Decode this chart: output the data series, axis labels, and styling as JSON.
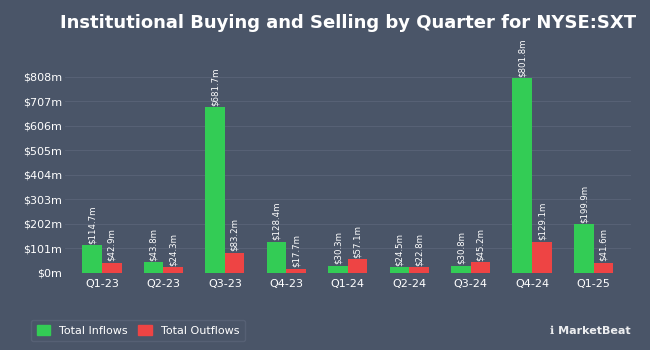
{
  "title": "Institutional Buying and Selling by Quarter for NYSE:SXT",
  "quarters": [
    "Q1-23",
    "Q2-23",
    "Q3-23",
    "Q4-23",
    "Q1-24",
    "Q2-24",
    "Q3-24",
    "Q4-24",
    "Q1-25"
  ],
  "inflows": [
    114.7,
    43.8,
    681.7,
    128.4,
    30.3,
    24.5,
    30.8,
    801.8,
    199.9
  ],
  "outflows": [
    42.9,
    24.3,
    83.2,
    17.7,
    57.1,
    22.8,
    45.2,
    129.1,
    41.6
  ],
  "inflow_labels": [
    "$114.7m",
    "$43.8m",
    "$681.7m",
    "$128.4m",
    "$30.3m",
    "$24.5m",
    "$30.8m",
    "$801.8m",
    "$199.9m"
  ],
  "outflow_labels": [
    "$42.9m",
    "$24.3m",
    "$83.2m",
    "$17.7m",
    "$57.1m",
    "$22.8m",
    "$45.2m",
    "$129.1m",
    "$41.6m"
  ],
  "inflow_color": "#33cc55",
  "outflow_color": "#ee4444",
  "background_color": "#4a5568",
  "grid_color": "#5a6478",
  "text_color": "#ffffff",
  "bar_width": 0.32,
  "ylim": [
    0,
    950
  ],
  "yticks": [
    0,
    101,
    202,
    303,
    404,
    505,
    606,
    707,
    808
  ],
  "ytick_labels": [
    "$0m",
    "$101m",
    "$202m",
    "$303m",
    "$404m",
    "$505m",
    "$606m",
    "$707m",
    "$808m"
  ],
  "legend_inflow": "Total Inflows",
  "legend_outflow": "Total Outflows",
  "title_fontsize": 13,
  "label_fontsize": 6.2,
  "tick_fontsize": 8,
  "legend_fontsize": 8,
  "marketbeat_text": "MarketBeat"
}
